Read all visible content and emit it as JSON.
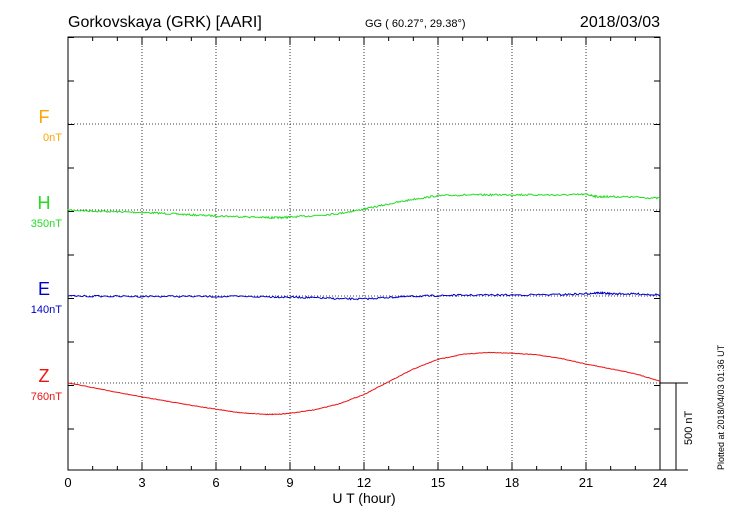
{
  "header": {
    "station": "Gorkovskaya (GRK)  [AARI]",
    "coords": "GG ( 60.27°,  29.38°)",
    "date": "2018/03/03"
  },
  "chart_data": {
    "type": "line",
    "title": "Gorkovskaya (GRK)  [AARI]",
    "xlabel": "U T (hour)",
    "ylabel": "",
    "xlim": [
      0,
      24
    ],
    "xticks": [
      0,
      3,
      6,
      9,
      12,
      15,
      18,
      21,
      24
    ],
    "tick_labels": [
      "0",
      "3",
      "6",
      "9",
      "12",
      "15",
      "18",
      "21",
      "24"
    ],
    "grid": true,
    "scale_bar": {
      "label": "500 nT",
      "value_nT": 500
    },
    "series": [
      {
        "name": "F",
        "base": "0nT",
        "color": "#FFA500",
        "x": [],
        "y": []
      },
      {
        "name": "H",
        "base": "350nT",
        "color": "#22DD22",
        "x": [
          0,
          1,
          2,
          3,
          4,
          5,
          6,
          7,
          8,
          8.5,
          9,
          10,
          11,
          12,
          13,
          14,
          15,
          16,
          17,
          18,
          19,
          20,
          21,
          21.5,
          22,
          23,
          24
        ],
        "y": [
          350,
          344,
          340,
          336,
          330,
          322,
          316,
          312,
          307,
          306,
          309,
          318,
          330,
          355,
          384,
          412,
          432,
          436,
          437,
          438,
          437,
          436,
          440,
          426,
          427,
          424,
          417
        ]
      },
      {
        "name": "E",
        "base": "140nT",
        "color": "#0000CC",
        "x": [
          0,
          2,
          4,
          6,
          8,
          9,
          10,
          11,
          12,
          13,
          14,
          15,
          16,
          18,
          20,
          21,
          21.5,
          22,
          23,
          24
        ],
        "y": [
          140,
          138,
          138,
          137,
          136,
          134,
          130,
          124,
          123,
          132,
          138,
          142,
          145,
          146,
          148,
          153,
          158,
          153,
          152,
          147
        ]
      },
      {
        "name": "Z",
        "base": "760nT",
        "color": "#EE1111",
        "x": [
          0,
          1,
          2,
          3,
          4,
          5,
          6,
          7,
          8,
          8.5,
          9,
          10,
          11,
          12,
          13,
          14,
          15,
          16,
          17,
          18,
          19,
          20,
          21,
          22,
          23,
          24
        ],
        "y": [
          760,
          734,
          706,
          680,
          656,
          632,
          609,
          589,
          580,
          580,
          586,
          606,
          641,
          694,
          767,
          840,
          896,
          925,
          935,
          932,
          922,
          901,
          869,
          842,
          813,
          771
        ]
      }
    ]
  },
  "footer": {
    "plotted": "Plotted at 2018/04/03 01:36 UT"
  }
}
